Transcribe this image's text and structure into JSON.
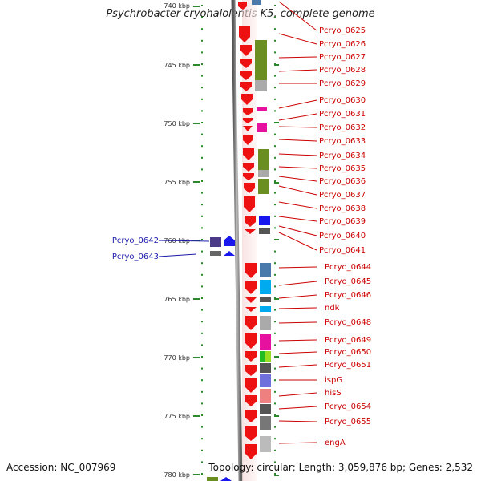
{
  "header": {
    "title": "Psychrobacter cryohalolentis K5, complete genome",
    "top_scale_label": "740 kbp"
  },
  "scale_labels": [
    "745 kbp",
    "750 kbp",
    "755 kbp",
    "760 kbp",
    "765 kbp",
    "770 kbp",
    "775 kbp",
    "780 kbp"
  ],
  "left_gene_labels": [
    "Pcryo_0642",
    "Pcryo_0643"
  ],
  "right_gene_labels": [
    "Pcryo_0625",
    "Pcryo_0626",
    "Pcryo_0627",
    "Pcryo_0628",
    "Pcryo_0629",
    "Pcryo_0630",
    "Pcryo_0631",
    "Pcryo_0632",
    "Pcryo_0633",
    "Pcryo_0634",
    "Pcryo_0635",
    "Pcryo_0636",
    "Pcryo_0637",
    "Pcryo_0638",
    "Pcryo_0639",
    "Pcryo_0640",
    "Pcryo_0641",
    "Pcryo_0644",
    "Pcryo_0645",
    "Pcryo_0646",
    "ndk",
    "Pcryo_0648",
    "Pcryo_0649",
    "Pcryo_0650",
    "Pcryo_0651",
    "ispG",
    "hisS",
    "Pcryo_0654",
    "Pcryo_0655",
    "engA"
  ],
  "colors": {
    "forward_gene": "#ee1111",
    "reverse_gene": "#1818ee",
    "label_forward": "#cc0000",
    "label_reverse": "#1a1aaa",
    "tick": "#2a8a2a",
    "backbone": "#777777"
  },
  "footer": {
    "accession": "Accession: NC_007969",
    "summary": "Topology: circular; Length: 3,059,876 bp; Genes: 2,532"
  }
}
